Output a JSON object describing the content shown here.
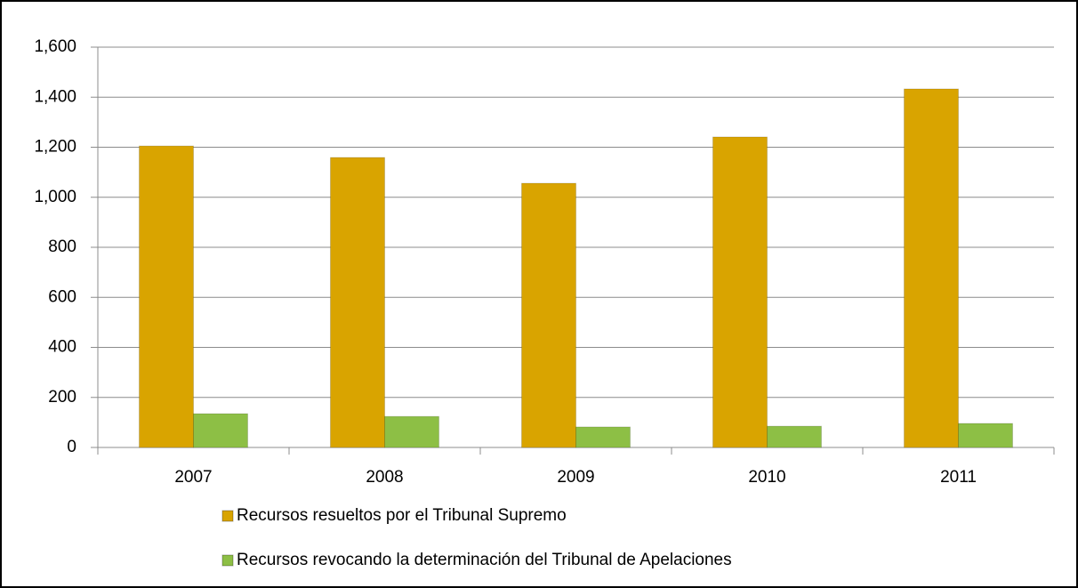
{
  "chart_data": {
    "type": "bar",
    "categories": [
      "2007",
      "2008",
      "2009",
      "2010",
      "2011"
    ],
    "series": [
      {
        "name": "Recursos resueltos por el Tribunal Supremo",
        "color": "#d9a400",
        "values": [
          1205,
          1159,
          1056,
          1241,
          1433
        ]
      },
      {
        "name": "Recursos revocando la determinación del Tribunal de Apelaciones",
        "color": "#8dbf45",
        "values": [
          135,
          124,
          82,
          85,
          96
        ]
      }
    ],
    "ylim": [
      0,
      1600
    ],
    "yticks": [
      0,
      200,
      400,
      600,
      800,
      {
        "value": 1000,
        "label": "1,000"
      },
      {
        "value": 1200,
        "label": "1,200"
      },
      {
        "value": 1400,
        "label": "1,400"
      },
      {
        "value": 1600,
        "label": "1,600"
      }
    ],
    "grid": true,
    "legend": "bottom"
  }
}
